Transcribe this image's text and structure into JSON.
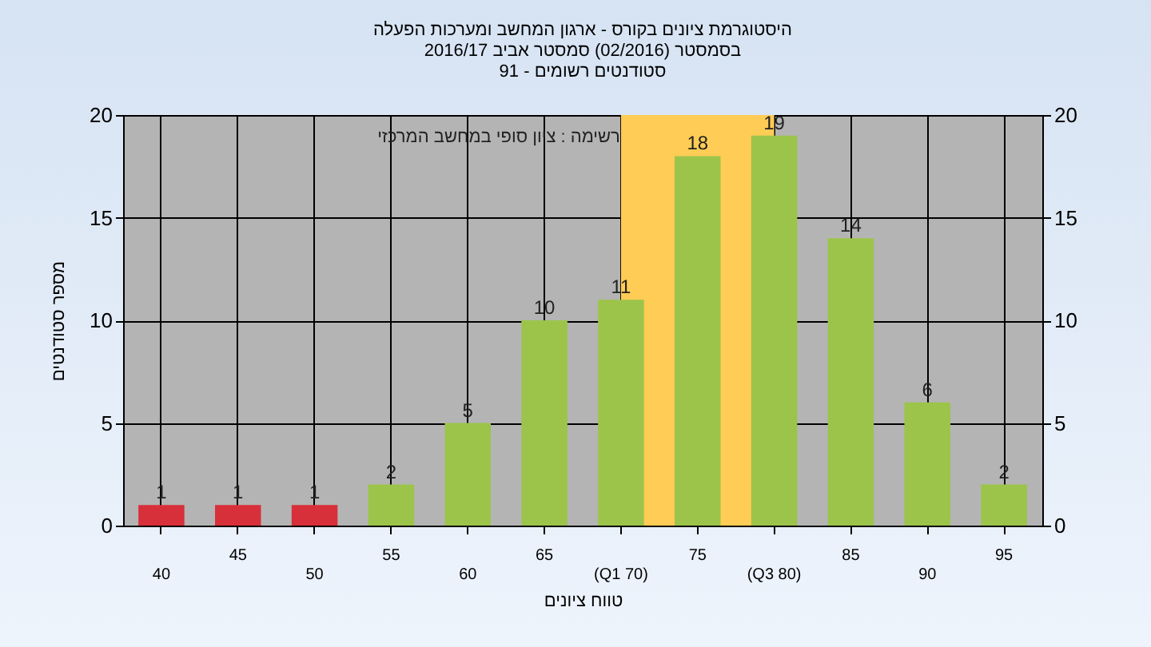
{
  "chart_data": {
    "type": "bar",
    "title": [
      "היסטוגרמת ציונים בקורס - ארגון המחשב ומערכות הפעלה",
      "בסמסטר  (02/2016)  סמסטר אביב 2016/17",
      "סטודנטים רשומים - 91"
    ],
    "xlabel": "טווח ציונים",
    "ylabel": "מספר סטודנטים",
    "annotations": [
      "רשימה : ציון סופי במחשב המרכזי"
    ],
    "categories": [
      "40",
      "45",
      "50",
      "55",
      "60",
      "65",
      "(Q1 70)",
      "75",
      "(Q3 80)",
      "85",
      "90",
      "95"
    ],
    "values": [
      1,
      1,
      1,
      2,
      5,
      10,
      11,
      18,
      19,
      14,
      6,
      2
    ],
    "colors": [
      "#d8303a",
      "#d8303a",
      "#d8303a",
      "#9cc44a",
      "#9cc44a",
      "#9cc44a",
      "#9cc44a",
      "#9cc44a",
      "#9cc44a",
      "#9cc44a",
      "#9cc44a",
      "#9cc44a"
    ],
    "data_labels": true,
    "ylim": [
      0,
      20
    ],
    "yticks": [
      0,
      5,
      10,
      15,
      20
    ],
    "y2lim": [
      0,
      20
    ],
    "y2ticks": [
      0,
      5,
      10,
      15,
      20
    ],
    "bands": [
      {
        "axis": "x",
        "from": "(Q1 70)",
        "to": "(Q3 80)",
        "color": "#ffcc55"
      }
    ],
    "grid": true
  }
}
